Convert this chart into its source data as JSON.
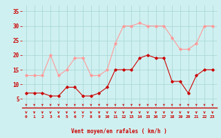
{
  "hours": [
    0,
    1,
    2,
    3,
    4,
    5,
    6,
    7,
    8,
    9,
    10,
    11,
    12,
    13,
    14,
    15,
    16,
    17,
    18,
    19,
    20,
    21,
    22,
    23
  ],
  "wind_avg": [
    7,
    7,
    7,
    6,
    6,
    9,
    9,
    6,
    6,
    7,
    9,
    15,
    15,
    15,
    19,
    20,
    19,
    19,
    11,
    11,
    7,
    13,
    15,
    15
  ],
  "wind_gust": [
    13,
    13,
    13,
    20,
    13,
    15,
    19,
    19,
    13,
    13,
    15,
    24,
    30,
    30,
    31,
    30,
    30,
    30,
    26,
    22,
    22,
    24,
    30,
    30
  ],
  "bg_color": "#cff0f0",
  "grid_color": "#aad8d8",
  "line_avg_color": "#cc0000",
  "line_gust_color": "#ff9999",
  "xlabel": "Vent moyen/en rafales ( km/h )",
  "xlabel_color": "#cc0000",
  "tick_color": "#cc0000",
  "ylim": [
    2,
    37
  ],
  "yticks": [
    5,
    10,
    15,
    20,
    25,
    30,
    35
  ],
  "spine_color": "#cc0000"
}
